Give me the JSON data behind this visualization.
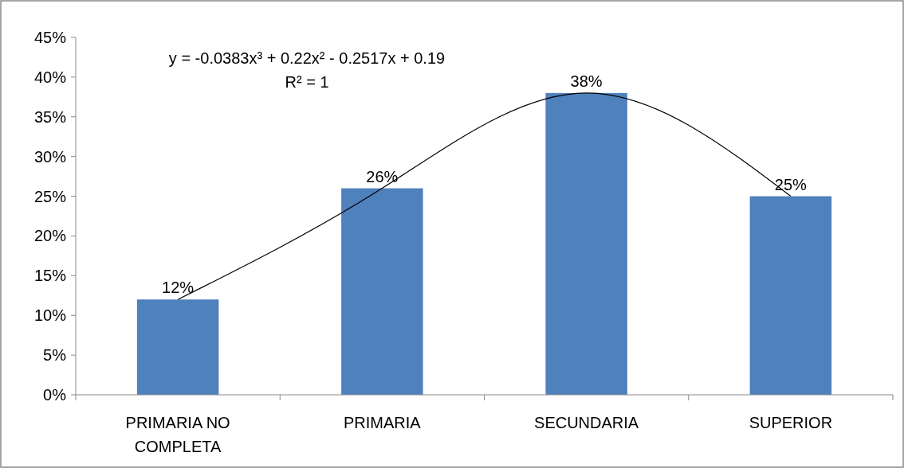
{
  "chart_data": {
    "type": "bar",
    "categories": [
      "PRIMARIA NO COMPLETA",
      "PRIMARIA",
      "SECUNDARIA",
      "SUPERIOR"
    ],
    "series": [
      {
        "color": "#4f81bd",
        "values": [
          12,
          26,
          38,
          25
        ],
        "value_labels": [
          "12%",
          "26%",
          "38%",
          "25%"
        ]
      },
      {
        "type": "line",
        "color": "#000000",
        "values": [
          12,
          26,
          38,
          25
        ],
        "marker": "none",
        "line_style": "solid"
      }
    ],
    "ylim": [
      0,
      45
    ],
    "yticks": [
      {
        "value": 0,
        "label": "0%"
      },
      {
        "value": 5,
        "label": "5%"
      },
      {
        "value": 10,
        "label": "10%"
      },
      {
        "value": 15,
        "label": "15%"
      },
      {
        "value": 20,
        "label": "20%"
      },
      {
        "value": 25,
        "label": "25%"
      },
      {
        "value": 30,
        "label": "30%"
      },
      {
        "value": 35,
        "label": "35%"
      },
      {
        "value": 40,
        "label": "40%"
      },
      {
        "value": 45,
        "label": "45%"
      }
    ],
    "grid": false,
    "annotations": [
      "y = -0.0383x³ + 0.22x² - 0.2517x + 0.19",
      "R² = 1"
    ]
  }
}
